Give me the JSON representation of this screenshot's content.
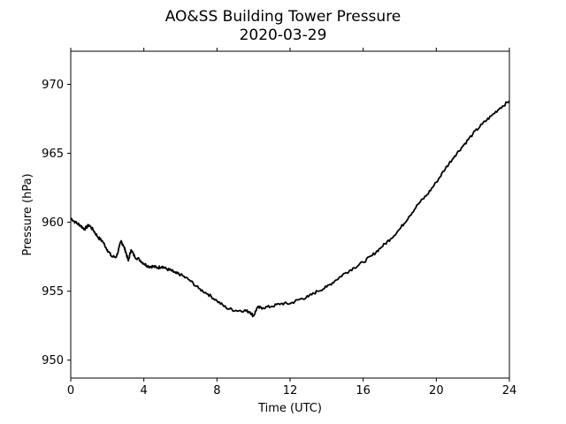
{
  "chart_data": {
    "type": "line",
    "title": "AO&SS Building Tower Pressure",
    "subtitle": "2020-03-29",
    "xlabel": "Time (UTC)",
    "ylabel": "Pressure (hPa)",
    "xlim": [
      0,
      24
    ],
    "ylim": [
      948.7,
      972.4
    ],
    "xticks": [
      0,
      4,
      8,
      12,
      16,
      20,
      24
    ],
    "yticks": [
      950,
      955,
      960,
      965,
      970
    ],
    "grid": false,
    "line_color": "#000000",
    "series": [
      {
        "x": [
          0,
          0.25,
          0.5,
          0.75,
          1.0,
          1.25,
          1.5,
          1.75,
          2.0,
          2.25,
          2.5,
          2.75,
          2.85,
          3.0,
          3.15,
          3.3,
          3.5,
          3.75,
          4.0,
          4.25,
          4.5,
          4.75,
          5.0,
          5.25,
          5.5,
          5.75,
          6.0,
          6.5,
          7.0,
          7.5,
          8.0,
          8.5,
          9.0,
          9.5,
          9.8,
          10.0,
          10.2,
          10.5,
          11.0,
          11.5,
          12.0,
          12.5,
          13.0,
          13.5,
          14.0,
          14.5,
          15.0,
          15.5,
          16.0,
          16.5,
          17.0,
          17.5,
          18.0,
          18.5,
          19.0,
          19.5,
          20.0,
          20.5,
          21.0,
          21.5,
          22.0,
          22.5,
          23.0,
          23.5,
          24.0
        ],
        "y": [
          960.3,
          960.0,
          959.8,
          959.5,
          959.8,
          959.4,
          958.9,
          958.6,
          958.0,
          957.5,
          957.5,
          958.6,
          958.4,
          957.9,
          957.2,
          958.0,
          957.5,
          957.3,
          957.0,
          956.8,
          956.8,
          956.7,
          956.8,
          956.6,
          956.5,
          956.3,
          956.2,
          955.8,
          955.2,
          954.8,
          954.3,
          953.8,
          953.6,
          953.6,
          953.5,
          953.2,
          953.8,
          953.8,
          953.9,
          954.1,
          954.1,
          954.4,
          954.6,
          955.0,
          955.3,
          955.8,
          956.3,
          956.7,
          957.1,
          957.6,
          958.2,
          958.8,
          959.5,
          960.4,
          961.3,
          962.0,
          962.9,
          963.9,
          964.8,
          965.6,
          966.4,
          967.1,
          967.7,
          968.3,
          968.8
        ]
      }
    ]
  }
}
